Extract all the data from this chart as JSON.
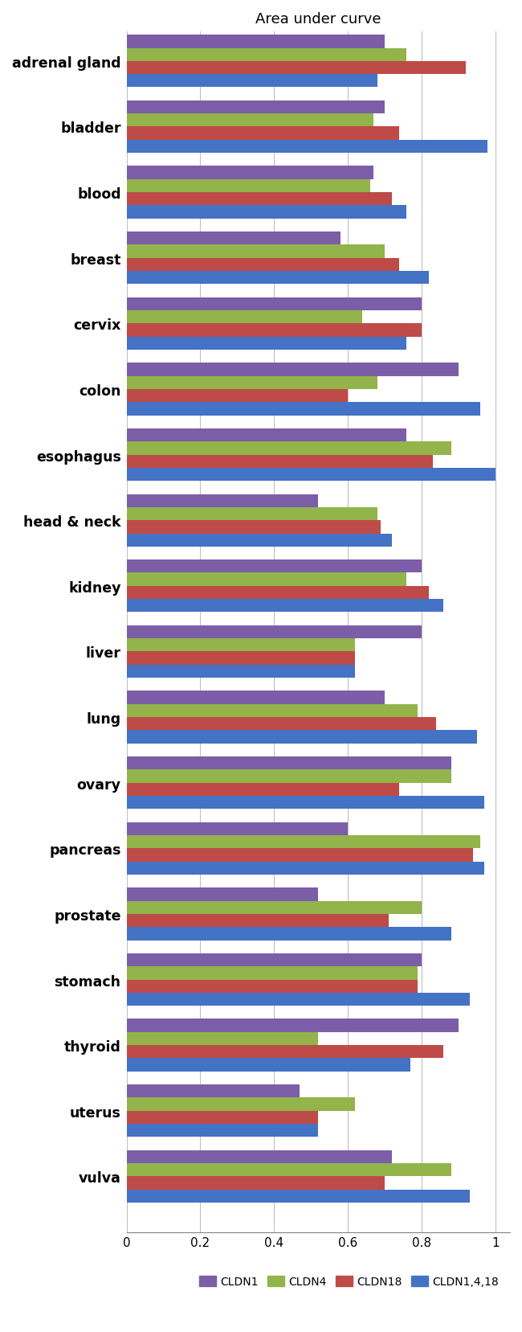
{
  "title": "Area under curve",
  "categories": [
    "adrenal gland",
    "bladder",
    "blood",
    "breast",
    "cervix",
    "colon",
    "esophagus",
    "head & neck",
    "kidney",
    "liver",
    "lung",
    "ovary",
    "pancreas",
    "prostate",
    "stomach",
    "thyroid",
    "uterus",
    "vulva"
  ],
  "CLDN1": [
    0.7,
    0.7,
    0.67,
    0.58,
    0.8,
    0.9,
    0.76,
    0.52,
    0.8,
    0.8,
    0.7,
    0.88,
    0.6,
    0.52,
    0.8,
    0.9,
    0.47,
    0.72
  ],
  "CLDN4": [
    0.76,
    0.67,
    0.66,
    0.7,
    0.64,
    0.68,
    0.88,
    0.68,
    0.76,
    0.62,
    0.79,
    0.88,
    0.96,
    0.8,
    0.79,
    0.52,
    0.62,
    0.88
  ],
  "CLDN18": [
    0.92,
    0.74,
    0.72,
    0.74,
    0.8,
    0.6,
    0.83,
    0.69,
    0.82,
    0.62,
    0.84,
    0.74,
    0.94,
    0.71,
    0.79,
    0.86,
    0.52,
    0.7
  ],
  "CLDN1418": [
    0.68,
    0.98,
    0.76,
    0.82,
    0.76,
    0.96,
    1.0,
    0.72,
    0.86,
    0.62,
    0.95,
    0.97,
    0.97,
    0.88,
    0.93,
    0.77,
    0.52,
    0.93
  ],
  "colors": {
    "CLDN1": "#7b5ea7",
    "CLDN4": "#92b44a",
    "CLDN18": "#be4b48",
    "CLDN1418": "#4472c4"
  },
  "xlim": [
    0,
    1.04
  ],
  "xticks": [
    0,
    0.2,
    0.4,
    0.6,
    0.8,
    1.0
  ],
  "figsize": [
    6.5,
    16.58
  ],
  "dpi": 100
}
